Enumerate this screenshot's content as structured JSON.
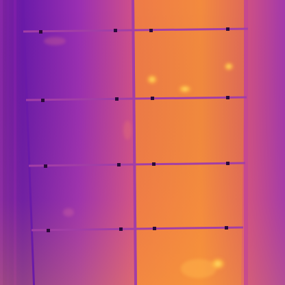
{
  "image": {
    "kind": "thermal-infrared-photo",
    "palette": "ironbow",
    "subject": "solar-panel-array"
  },
  "colors": {
    "coolest": "#6a1aa8",
    "cool": "#8a2bb8",
    "mid": "#c0449a",
    "warm": "#e56a5a",
    "hot": "#f7893a",
    "hottest": "#ffd24a",
    "frame": "#a23ea6",
    "bolt": "#2a0a3a"
  },
  "array": {
    "columns": 2,
    "rows": 4,
    "panel_count": 8,
    "hotspot_count": 5
  }
}
